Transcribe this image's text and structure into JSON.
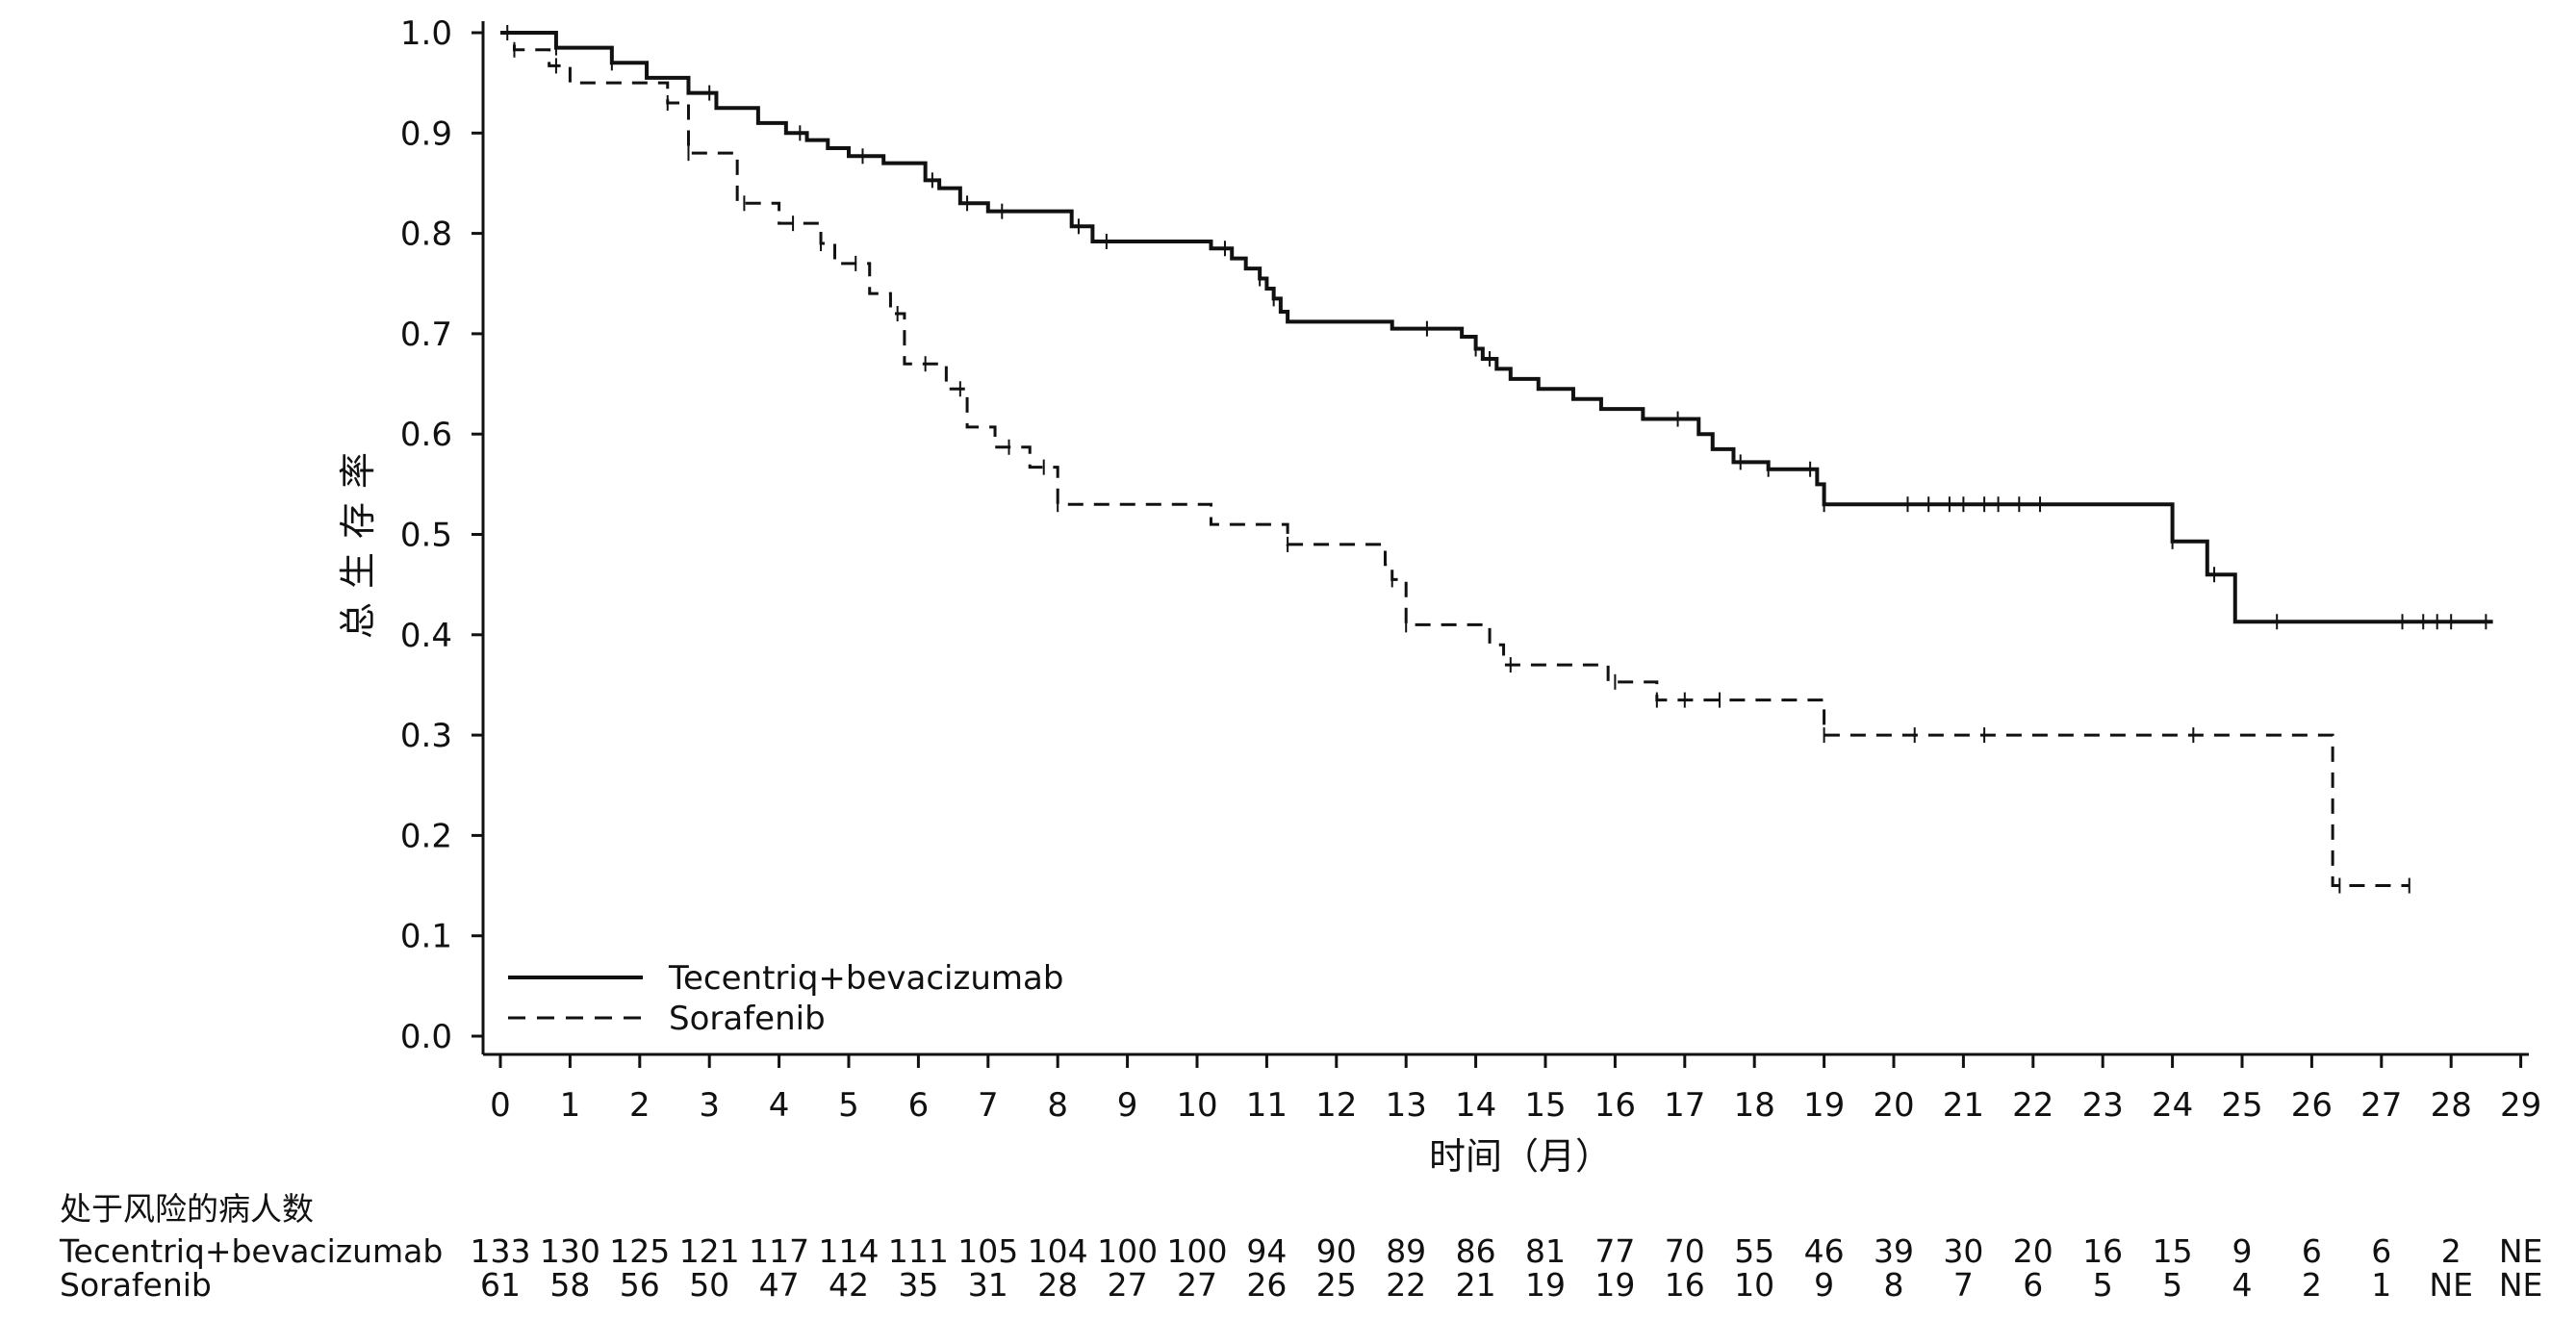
{
  "chart_data": {
    "type": "line",
    "xlabel": "时间（月）",
    "ylabel": "总生存率",
    "xlim": [
      0,
      29
    ],
    "ylim": [
      0,
      1.0
    ],
    "x_ticks": [
      "0",
      "1",
      "2",
      "3",
      "4",
      "5",
      "6",
      "7",
      "8",
      "9",
      "10",
      "11",
      "12",
      "13",
      "14",
      "15",
      "16",
      "17",
      "18",
      "19",
      "20",
      "21",
      "22",
      "23",
      "24",
      "25",
      "26",
      "27",
      "28",
      "29"
    ],
    "y_ticks": [
      "0.0",
      "0.1",
      "0.2",
      "0.3",
      "0.4",
      "0.5",
      "0.6",
      "0.7",
      "0.8",
      "0.9",
      "1.0"
    ],
    "legend_position": "bottom-left",
    "series": [
      {
        "name": "Tecentriq+bevacizumab",
        "line_style": "solid",
        "color": "#111111",
        "x": [
          0,
          0.8,
          1.6,
          2.1,
          2.7,
          3.1,
          3.7,
          4.1,
          4.4,
          4.7,
          5.0,
          5.5,
          6.1,
          6.3,
          6.6,
          7.0,
          7.3,
          8.2,
          8.5,
          10.2,
          10.5,
          10.7,
          10.9,
          11.0,
          11.1,
          11.2,
          11.3,
          12.8,
          13.8,
          14.0,
          14.1,
          14.3,
          14.5,
          14.9,
          15.4,
          15.8,
          16.4,
          17.2,
          17.4,
          17.7,
          18.2,
          18.9,
          19.0,
          24.0,
          24.5,
          24.9,
          28.6
        ],
        "y": [
          1.0,
          0.985,
          0.97,
          0.955,
          0.94,
          0.925,
          0.91,
          0.9,
          0.893,
          0.885,
          0.877,
          0.87,
          0.853,
          0.845,
          0.83,
          0.822,
          0.822,
          0.807,
          0.792,
          0.785,
          0.775,
          0.765,
          0.755,
          0.745,
          0.735,
          0.722,
          0.712,
          0.705,
          0.697,
          0.685,
          0.675,
          0.665,
          0.655,
          0.645,
          0.635,
          0.625,
          0.615,
          0.6,
          0.585,
          0.572,
          0.565,
          0.55,
          0.53,
          0.493,
          0.46,
          0.413,
          0.413
        ],
        "censor_x": [
          0.1,
          0.8,
          1.6,
          3.0,
          4.3,
          5.2,
          6.2,
          6.7,
          7.2,
          8.3,
          8.7,
          10.4,
          10.9,
          11.1,
          13.3,
          14.0,
          14.2,
          16.9,
          17.8,
          18.2,
          18.8,
          19.0,
          20.2,
          20.5,
          20.8,
          21.0,
          21.3,
          21.5,
          21.8,
          22.1,
          24.0,
          24.6,
          25.5,
          27.3,
          27.6,
          27.8,
          28.0,
          28.5
        ]
      },
      {
        "name": "Sorafenib",
        "line_style": "dashed",
        "color": "#111111",
        "x": [
          0,
          0.2,
          0.7,
          1.0,
          2.4,
          2.7,
          3.4,
          4.0,
          4.6,
          4.8,
          5.3,
          5.6,
          5.8,
          6.4,
          6.7,
          7.1,
          7.6,
          8.0,
          10.2,
          11.3,
          12.7,
          12.8,
          13.0,
          14.2,
          14.4,
          15.9,
          16.6,
          19.0,
          26.3,
          27.4
        ],
        "y": [
          1.0,
          0.983,
          0.967,
          0.95,
          0.93,
          0.88,
          0.83,
          0.81,
          0.79,
          0.77,
          0.74,
          0.72,
          0.67,
          0.645,
          0.607,
          0.587,
          0.567,
          0.53,
          0.51,
          0.49,
          0.47,
          0.455,
          0.41,
          0.39,
          0.37,
          0.353,
          0.335,
          0.3,
          0.15,
          0.15
        ],
        "censor_x": [
          0.2,
          0.8,
          2.4,
          2.7,
          3.5,
          4.2,
          4.6,
          5.1,
          5.7,
          6.1,
          6.6,
          7.3,
          7.8,
          8.0,
          11.3,
          12.8,
          13.0,
          14.5,
          16.0,
          16.6,
          17.0,
          17.5,
          19.0,
          20.3,
          21.3,
          24.3,
          26.4,
          27.4
        ]
      }
    ]
  },
  "risk_table": {
    "title": "处于风险的病人数",
    "rows": [
      {
        "label": "Tecentriq+bevacizumab",
        "values": [
          "133",
          "130",
          "125",
          "121",
          "117",
          "114",
          "111",
          "105",
          "104",
          "100",
          "100",
          "94",
          "90",
          "89",
          "86",
          "81",
          "77",
          "70",
          "55",
          "46",
          "39",
          "30",
          "20",
          "16",
          "15",
          "9",
          "6",
          "6",
          "2",
          "NE"
        ]
      },
      {
        "label": "Sorafenib",
        "values": [
          "61",
          "58",
          "56",
          "50",
          "47",
          "42",
          "35",
          "31",
          "28",
          "27",
          "27",
          "26",
          "25",
          "22",
          "21",
          "19",
          "19",
          "16",
          "10",
          "9",
          "8",
          "7",
          "6",
          "5",
          "5",
          "4",
          "2",
          "1",
          "NE",
          "NE"
        ]
      }
    ]
  }
}
